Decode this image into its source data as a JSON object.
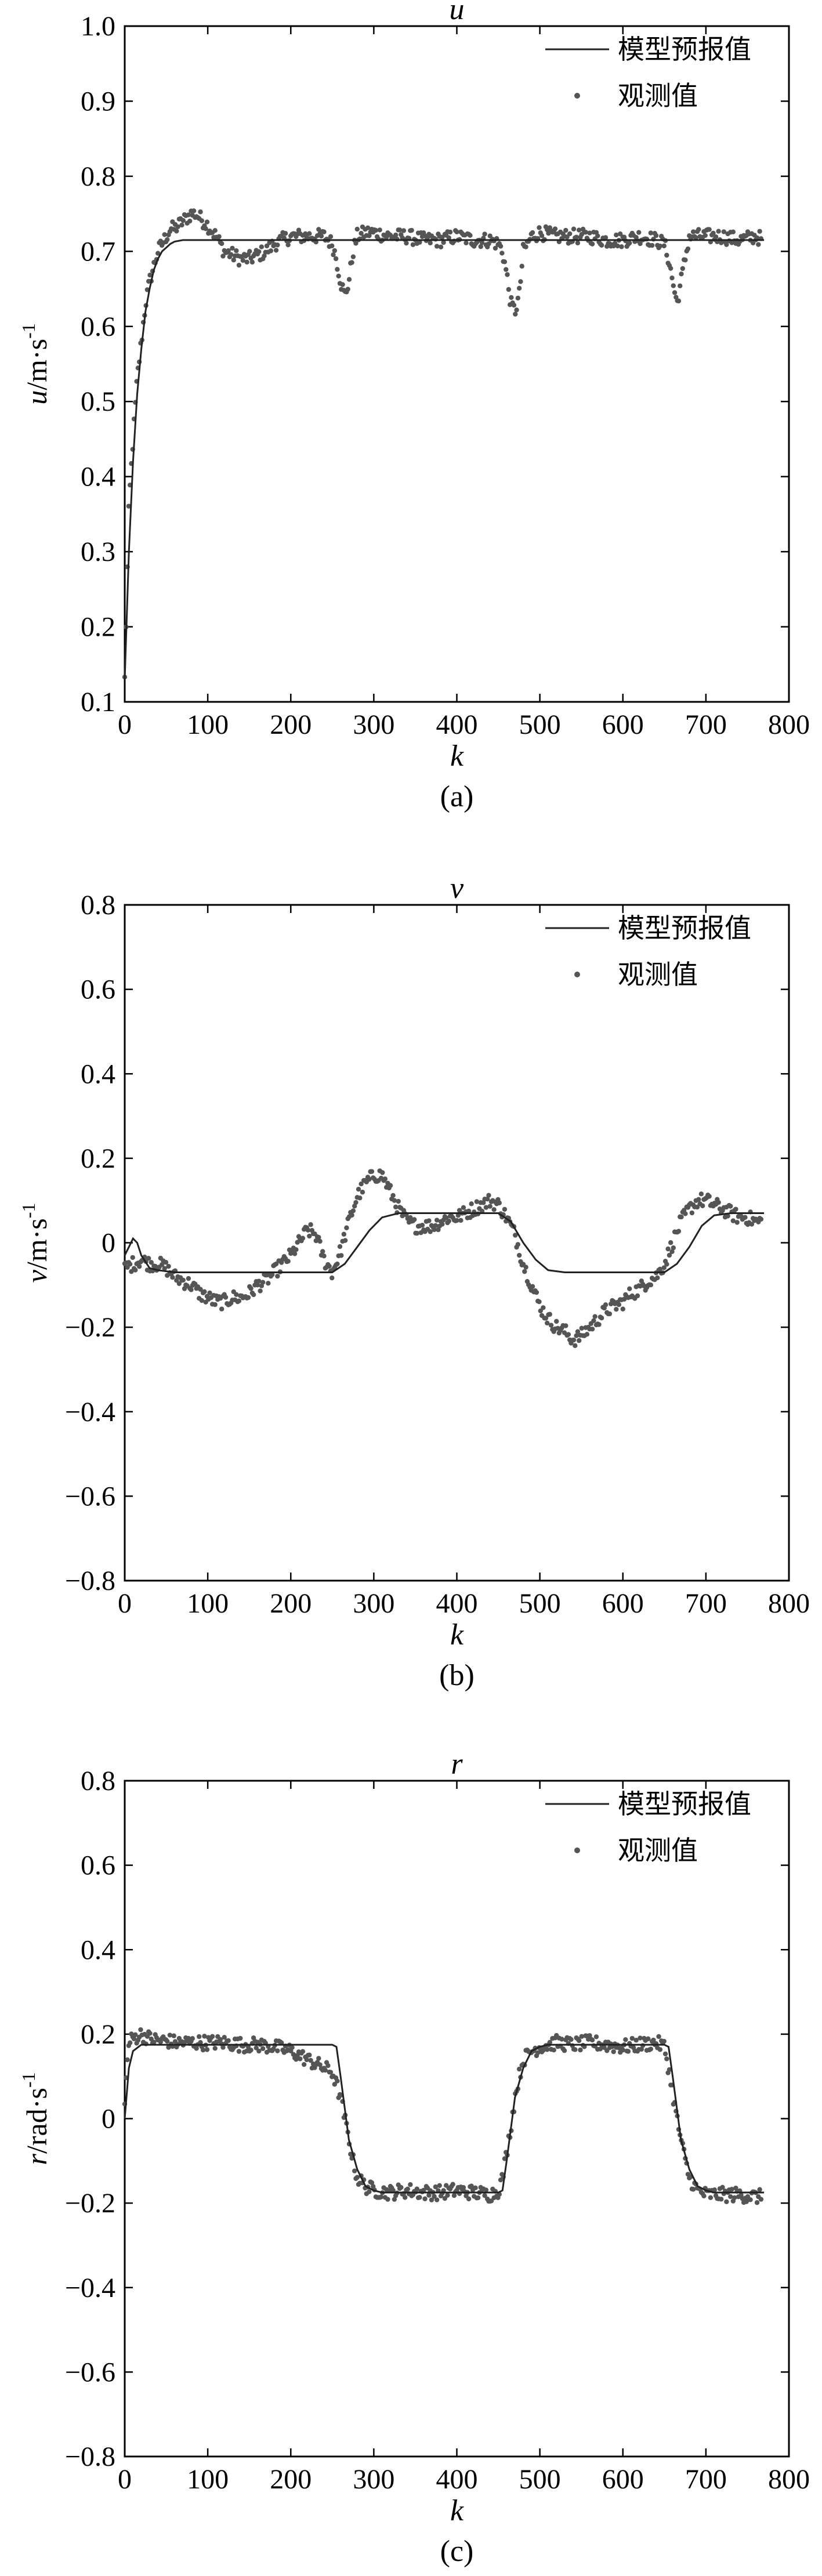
{
  "figure": {
    "captions": [
      "(a)",
      "(b)",
      "(c)"
    ]
  },
  "chart_data": [
    {
      "type": "line",
      "title": "u",
      "xlabel": "k",
      "ylabel": "u/m·s⁻¹",
      "ylabel_var": "u",
      "ylabel_unit": "/m·s",
      "ylabel_exp": "-1",
      "xlim": [
        0,
        800
      ],
      "ylim": [
        0.1,
        1.0
      ],
      "xticks": [
        0,
        100,
        200,
        300,
        400,
        500,
        600,
        700,
        800
      ],
      "xtick_labels": [
        "0",
        "100",
        "200",
        "300",
        "400",
        "500",
        "600",
        "700",
        "800"
      ],
      "yticks": [
        0.1,
        0.2,
        0.3,
        0.4,
        0.5,
        0.6,
        0.7,
        0.8,
        0.9,
        1.0
      ],
      "ytick_labels": [
        "0.1",
        "0.2",
        "0.3",
        "0.4",
        "0.5",
        "0.6",
        "0.7",
        "0.8",
        "0.9",
        "1.0"
      ],
      "legend": {
        "position": "top-right",
        "entries": [
          "模型预报值",
          "观测值"
        ]
      },
      "series": [
        {
          "name": "模型预报值",
          "kind": "line",
          "x": [
            0,
            5,
            10,
            15,
            20,
            25,
            30,
            35,
            40,
            45,
            50,
            55,
            60,
            70,
            80,
            250,
            770
          ],
          "values": [
            0.13,
            0.3,
            0.42,
            0.51,
            0.57,
            0.62,
            0.65,
            0.675,
            0.69,
            0.7,
            0.705,
            0.71,
            0.713,
            0.715,
            0.715,
            0.715,
            0.715
          ]
        },
        {
          "name": "观测值",
          "kind": "scatter",
          "x": [
            0,
            5,
            10,
            15,
            20,
            25,
            30,
            35,
            40,
            45,
            50,
            55,
            60,
            65,
            70,
            75,
            80,
            85,
            90,
            95,
            100,
            110,
            120,
            130,
            140,
            150,
            160,
            170,
            180,
            190,
            200,
            210,
            220,
            230,
            240,
            250,
            255,
            260,
            265,
            270,
            275,
            280,
            290,
            300,
            320,
            340,
            360,
            380,
            400,
            420,
            440,
            450,
            455,
            460,
            465,
            470,
            475,
            480,
            490,
            500,
            520,
            540,
            560,
            580,
            600,
            620,
            640,
            650,
            655,
            660,
            665,
            670,
            680,
            700,
            720,
            740,
            760,
            770
          ],
          "values": [
            0.13,
            0.36,
            0.45,
            0.53,
            0.58,
            0.63,
            0.66,
            0.68,
            0.7,
            0.71,
            0.72,
            0.73,
            0.73,
            0.735,
            0.74,
            0.745,
            0.75,
            0.75,
            0.745,
            0.74,
            0.735,
            0.72,
            0.7,
            0.695,
            0.69,
            0.69,
            0.695,
            0.7,
            0.71,
            0.715,
            0.72,
            0.72,
            0.72,
            0.72,
            0.72,
            0.71,
            0.69,
            0.66,
            0.64,
            0.66,
            0.7,
            0.72,
            0.725,
            0.725,
            0.72,
            0.72,
            0.715,
            0.715,
            0.72,
            0.715,
            0.715,
            0.71,
            0.7,
            0.67,
            0.63,
            0.62,
            0.64,
            0.7,
            0.72,
            0.725,
            0.72,
            0.72,
            0.72,
            0.715,
            0.715,
            0.72,
            0.715,
            0.71,
            0.69,
            0.66,
            0.63,
            0.66,
            0.72,
            0.72,
            0.72,
            0.715,
            0.72,
            0.715
          ]
        }
      ]
    },
    {
      "type": "line",
      "title": "v",
      "xlabel": "k",
      "ylabel": "v/m·s⁻¹",
      "ylabel_var": "v",
      "ylabel_unit": "/m·s",
      "ylabel_exp": "-1",
      "xlim": [
        0,
        800
      ],
      "ylim": [
        -0.8,
        0.8
      ],
      "xticks": [
        0,
        100,
        200,
        300,
        400,
        500,
        600,
        700,
        800
      ],
      "xtick_labels": [
        "0",
        "100",
        "200",
        "300",
        "400",
        "500",
        "600",
        "700",
        "800"
      ],
      "yticks": [
        -0.8,
        -0.6,
        -0.4,
        -0.2,
        0,
        0.2,
        0.4,
        0.6,
        0.8
      ],
      "ytick_labels": [
        "−0.8",
        "−0.6",
        "−0.4",
        "−0.2",
        "0",
        "0.2",
        "0.4",
        "0.6",
        "0.8"
      ],
      "legend": {
        "position": "top-right",
        "entries": [
          "模型预报值",
          "观测值"
        ]
      },
      "series": [
        {
          "name": "模型预报值",
          "kind": "line",
          "x": [
            0,
            5,
            10,
            15,
            20,
            30,
            40,
            60,
            250,
            265,
            280,
            295,
            310,
            330,
            450,
            465,
            480,
            495,
            510,
            530,
            650,
            665,
            680,
            695,
            710,
            730,
            770
          ],
          "values": [
            -0.03,
            -0.01,
            0.01,
            0.0,
            -0.03,
            -0.06,
            -0.065,
            -0.07,
            -0.07,
            -0.05,
            -0.01,
            0.03,
            0.06,
            0.07,
            0.07,
            0.05,
            0.0,
            -0.04,
            -0.065,
            -0.07,
            -0.07,
            -0.05,
            -0.01,
            0.04,
            0.065,
            0.07,
            0.07
          ]
        },
        {
          "name": "观测值",
          "kind": "scatter",
          "x": [
            0,
            10,
            20,
            30,
            40,
            50,
            60,
            70,
            80,
            90,
            100,
            110,
            120,
            130,
            140,
            150,
            160,
            170,
            180,
            190,
            200,
            210,
            220,
            230,
            240,
            250,
            260,
            270,
            280,
            290,
            300,
            310,
            320,
            330,
            340,
            350,
            360,
            370,
            380,
            390,
            400,
            410,
            420,
            430,
            440,
            450,
            460,
            470,
            480,
            490,
            500,
            510,
            520,
            530,
            540,
            550,
            560,
            570,
            580,
            590,
            600,
            610,
            620,
            630,
            640,
            650,
            660,
            670,
            680,
            690,
            700,
            710,
            720,
            730,
            740,
            750,
            760,
            770
          ],
          "values": [
            -0.06,
            -0.05,
            -0.04,
            -0.05,
            -0.05,
            -0.06,
            -0.08,
            -0.09,
            -0.1,
            -0.12,
            -0.13,
            -0.14,
            -0.14,
            -0.13,
            -0.13,
            -0.12,
            -0.1,
            -0.09,
            -0.07,
            -0.05,
            -0.03,
            0.0,
            0.03,
            0.02,
            -0.04,
            -0.07,
            -0.02,
            0.05,
            0.11,
            0.14,
            0.16,
            0.16,
            0.12,
            0.08,
            0.05,
            0.04,
            0.04,
            0.04,
            0.05,
            0.06,
            0.06,
            0.07,
            0.08,
            0.09,
            0.1,
            0.09,
            0.06,
            0.02,
            -0.05,
            -0.1,
            -0.15,
            -0.18,
            -0.2,
            -0.21,
            -0.23,
            -0.22,
            -0.2,
            -0.18,
            -0.16,
            -0.15,
            -0.14,
            -0.12,
            -0.11,
            -0.09,
            -0.08,
            -0.05,
            0.0,
            0.05,
            0.08,
            0.1,
            0.1,
            0.09,
            0.08,
            0.07,
            0.06,
            0.06,
            0.05,
            0.05
          ]
        }
      ]
    },
    {
      "type": "line",
      "title": "r",
      "xlabel": "k",
      "ylabel": "r/rad·s⁻¹",
      "ylabel_var": "r",
      "ylabel_unit": "/rad·s",
      "ylabel_exp": "-1",
      "xlim": [
        0,
        800
      ],
      "ylim": [
        -0.8,
        0.8
      ],
      "xticks": [
        0,
        100,
        200,
        300,
        400,
        500,
        600,
        700,
        800
      ],
      "xtick_labels": [
        "0",
        "100",
        "200",
        "300",
        "400",
        "500",
        "600",
        "700",
        "800"
      ],
      "yticks": [
        -0.8,
        -0.6,
        -0.4,
        -0.2,
        0,
        0.2,
        0.4,
        0.6,
        0.8
      ],
      "ytick_labels": [
        "−0.8",
        "−0.6",
        "−0.4",
        "−0.2",
        "0",
        "0.2",
        "0.4",
        "0.6",
        "0.8"
      ],
      "legend": {
        "position": "top-right",
        "entries": [
          "模型预报值",
          "观测值"
        ]
      },
      "series": [
        {
          "name": "模型预报值",
          "kind": "line",
          "x": [
            0,
            5,
            10,
            20,
            40,
            60,
            250,
            255,
            260,
            270,
            280,
            290,
            300,
            310,
            450,
            455,
            460,
            470,
            480,
            490,
            500,
            510,
            650,
            655,
            660,
            670,
            680,
            690,
            700,
            710,
            770
          ],
          "values": [
            0.0,
            0.12,
            0.16,
            0.175,
            0.175,
            0.175,
            0.175,
            0.17,
            0.1,
            -0.05,
            -0.12,
            -0.16,
            -0.17,
            -0.175,
            -0.175,
            -0.17,
            -0.1,
            0.05,
            0.12,
            0.16,
            0.17,
            0.175,
            0.175,
            0.17,
            0.1,
            -0.05,
            -0.12,
            -0.16,
            -0.17,
            -0.175,
            -0.175
          ]
        },
        {
          "name": "观测值",
          "kind": "scatter",
          "x": [
            0,
            5,
            10,
            20,
            30,
            40,
            50,
            60,
            80,
            100,
            120,
            140,
            160,
            180,
            200,
            210,
            220,
            230,
            240,
            250,
            255,
            260,
            265,
            270,
            275,
            280,
            290,
            300,
            320,
            340,
            360,
            380,
            400,
            420,
            440,
            450,
            455,
            460,
            465,
            470,
            475,
            480,
            490,
            500,
            520,
            540,
            560,
            580,
            600,
            620,
            640,
            650,
            655,
            660,
            665,
            670,
            675,
            680,
            690,
            700,
            720,
            740,
            760,
            770
          ],
          "values": [
            0.05,
            0.18,
            0.19,
            0.2,
            0.19,
            0.185,
            0.185,
            0.18,
            0.18,
            0.18,
            0.18,
            0.175,
            0.175,
            0.17,
            0.16,
            0.15,
            0.14,
            0.13,
            0.12,
            0.11,
            0.08,
            0.05,
            0.0,
            -0.05,
            -0.1,
            -0.14,
            -0.16,
            -0.17,
            -0.175,
            -0.17,
            -0.175,
            -0.175,
            -0.17,
            -0.175,
            -0.18,
            -0.17,
            -0.14,
            -0.08,
            -0.02,
            0.05,
            0.1,
            0.14,
            0.16,
            0.17,
            0.18,
            0.175,
            0.18,
            0.175,
            0.17,
            0.175,
            0.18,
            0.17,
            0.12,
            0.06,
            0.0,
            -0.05,
            -0.1,
            -0.14,
            -0.17,
            -0.18,
            -0.18,
            -0.18,
            -0.185,
            -0.185
          ]
        }
      ]
    }
  ]
}
